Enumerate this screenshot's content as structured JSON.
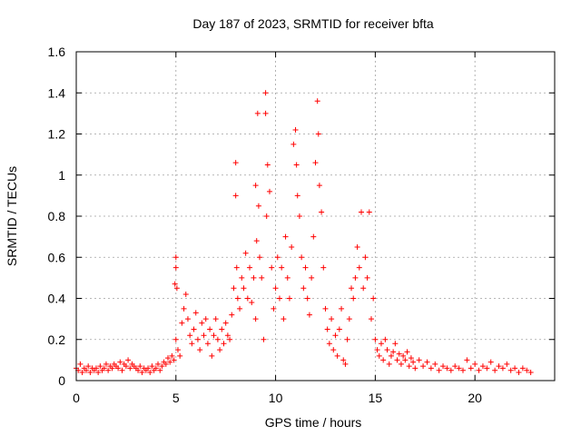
{
  "chart_data": {
    "type": "scatter",
    "title": "Day 187 of 2023, SRMTID for receiver bfta",
    "xlabel": "GPS time / hours",
    "ylabel": "SRMTID / TECUs",
    "xlim": [
      0,
      24
    ],
    "ylim": [
      0,
      1.6
    ],
    "xticks": [
      0,
      5,
      10,
      15,
      20
    ],
    "xtick_labels": [
      "0",
      "5",
      "10",
      "15",
      "20"
    ],
    "yticks": [
      0,
      0.2,
      0.4,
      0.6,
      0.8,
      1.0,
      1.2,
      1.4,
      1.6
    ],
    "ytick_labels": [
      "0",
      "0.2",
      "0.4",
      "0.6",
      "0.8",
      "1",
      "1.2",
      "1.4",
      "1.6"
    ],
    "grid": true,
    "marker": "plus",
    "marker_color": "#ff0000",
    "series": [
      {
        "name": "SRMTID",
        "points": [
          [
            0.0,
            0.06
          ],
          [
            0.1,
            0.05
          ],
          [
            0.2,
            0.08
          ],
          [
            0.3,
            0.04
          ],
          [
            0.4,
            0.06
          ],
          [
            0.5,
            0.05
          ],
          [
            0.6,
            0.07
          ],
          [
            0.7,
            0.04
          ],
          [
            0.8,
            0.06
          ],
          [
            0.9,
            0.05
          ],
          [
            1.0,
            0.06
          ],
          [
            1.1,
            0.04
          ],
          [
            1.2,
            0.07
          ],
          [
            1.3,
            0.05
          ],
          [
            1.4,
            0.06
          ],
          [
            1.5,
            0.08
          ],
          [
            1.6,
            0.05
          ],
          [
            1.7,
            0.07
          ],
          [
            1.8,
            0.06
          ],
          [
            1.9,
            0.08
          ],
          [
            2.0,
            0.07
          ],
          [
            2.1,
            0.06
          ],
          [
            2.2,
            0.09
          ],
          [
            2.3,
            0.05
          ],
          [
            2.4,
            0.08
          ],
          [
            2.5,
            0.07
          ],
          [
            2.6,
            0.1
          ],
          [
            2.7,
            0.06
          ],
          [
            2.8,
            0.08
          ],
          [
            2.9,
            0.07
          ],
          [
            3.0,
            0.06
          ],
          [
            3.1,
            0.05
          ],
          [
            3.2,
            0.07
          ],
          [
            3.3,
            0.04
          ],
          [
            3.4,
            0.06
          ],
          [
            3.5,
            0.05
          ],
          [
            3.6,
            0.06
          ],
          [
            3.7,
            0.04
          ],
          [
            3.8,
            0.07
          ],
          [
            3.9,
            0.05
          ],
          [
            4.0,
            0.06
          ],
          [
            4.1,
            0.08
          ],
          [
            4.2,
            0.05
          ],
          [
            4.3,
            0.07
          ],
          [
            4.4,
            0.09
          ],
          [
            4.5,
            0.08
          ],
          [
            4.6,
            0.11
          ],
          [
            4.7,
            0.09
          ],
          [
            4.8,
            0.12
          ],
          [
            4.9,
            0.1
          ],
          [
            5.0,
            0.6
          ],
          [
            5.0,
            0.55
          ],
          [
            4.95,
            0.47
          ],
          [
            5.05,
            0.45
          ],
          [
            5.0,
            0.2
          ],
          [
            5.1,
            0.15
          ],
          [
            5.2,
            0.12
          ],
          [
            5.3,
            0.28
          ],
          [
            5.4,
            0.35
          ],
          [
            5.5,
            0.42
          ],
          [
            5.6,
            0.3
          ],
          [
            5.7,
            0.22
          ],
          [
            5.8,
            0.18
          ],
          [
            5.9,
            0.25
          ],
          [
            6.0,
            0.33
          ],
          [
            6.1,
            0.2
          ],
          [
            6.2,
            0.15
          ],
          [
            6.3,
            0.28
          ],
          [
            6.4,
            0.22
          ],
          [
            6.5,
            0.3
          ],
          [
            6.6,
            0.18
          ],
          [
            6.7,
            0.25
          ],
          [
            6.8,
            0.12
          ],
          [
            6.9,
            0.22
          ],
          [
            7.0,
            0.3
          ],
          [
            7.1,
            0.2
          ],
          [
            7.2,
            0.15
          ],
          [
            7.3,
            0.25
          ],
          [
            7.4,
            0.18
          ],
          [
            7.5,
            0.28
          ],
          [
            7.6,
            0.22
          ],
          [
            7.7,
            0.2
          ],
          [
            7.8,
            0.32
          ],
          [
            7.9,
            0.45
          ],
          [
            8.0,
            1.06
          ],
          [
            8.0,
            0.9
          ],
          [
            8.05,
            0.55
          ],
          [
            8.1,
            0.4
          ],
          [
            8.2,
            0.35
          ],
          [
            8.3,
            0.5
          ],
          [
            8.4,
            0.45
          ],
          [
            8.5,
            0.62
          ],
          [
            8.6,
            0.4
          ],
          [
            8.7,
            0.55
          ],
          [
            8.8,
            0.38
          ],
          [
            8.9,
            0.5
          ],
          [
            9.0,
            0.3
          ],
          [
            9.0,
            0.95
          ],
          [
            9.05,
            0.68
          ],
          [
            9.1,
            1.3
          ],
          [
            9.15,
            0.85
          ],
          [
            9.2,
            0.6
          ],
          [
            9.3,
            0.5
          ],
          [
            9.4,
            0.2
          ],
          [
            9.5,
            1.4
          ],
          [
            9.5,
            1.3
          ],
          [
            9.55,
            0.8
          ],
          [
            9.6,
            1.05
          ],
          [
            9.7,
            0.92
          ],
          [
            9.8,
            0.55
          ],
          [
            9.9,
            0.35
          ],
          [
            10.0,
            0.45
          ],
          [
            10.1,
            0.6
          ],
          [
            10.2,
            0.4
          ],
          [
            10.3,
            0.55
          ],
          [
            10.4,
            0.3
          ],
          [
            10.5,
            0.7
          ],
          [
            10.6,
            0.5
          ],
          [
            10.7,
            0.4
          ],
          [
            10.8,
            0.65
          ],
          [
            10.9,
            1.15
          ],
          [
            11.0,
            1.22
          ],
          [
            11.05,
            1.05
          ],
          [
            11.1,
            0.9
          ],
          [
            11.2,
            0.8
          ],
          [
            11.3,
            0.6
          ],
          [
            11.4,
            0.45
          ],
          [
            11.5,
            0.55
          ],
          [
            11.6,
            0.4
          ],
          [
            11.7,
            0.32
          ],
          [
            11.8,
            0.5
          ],
          [
            11.9,
            0.7
          ],
          [
            12.0,
            1.06
          ],
          [
            12.1,
            1.36
          ],
          [
            12.15,
            1.2
          ],
          [
            12.2,
            0.95
          ],
          [
            12.3,
            0.82
          ],
          [
            12.4,
            0.55
          ],
          [
            12.5,
            0.35
          ],
          [
            12.6,
            0.25
          ],
          [
            12.7,
            0.18
          ],
          [
            12.8,
            0.3
          ],
          [
            12.9,
            0.15
          ],
          [
            13.0,
            0.22
          ],
          [
            13.1,
            0.12
          ],
          [
            13.2,
            0.25
          ],
          [
            13.3,
            0.35
          ],
          [
            13.4,
            0.1
          ],
          [
            13.5,
            0.08
          ],
          [
            13.6,
            0.2
          ],
          [
            13.7,
            0.3
          ],
          [
            13.8,
            0.45
          ],
          [
            13.9,
            0.4
          ],
          [
            14.0,
            0.5
          ],
          [
            14.1,
            0.65
          ],
          [
            14.2,
            0.55
          ],
          [
            14.3,
            0.82
          ],
          [
            14.4,
            0.45
          ],
          [
            14.5,
            0.6
          ],
          [
            14.6,
            0.5
          ],
          [
            14.7,
            0.82
          ],
          [
            14.8,
            0.3
          ],
          [
            14.9,
            0.4
          ],
          [
            15.0,
            0.2
          ],
          [
            15.1,
            0.15
          ],
          [
            15.2,
            0.12
          ],
          [
            15.3,
            0.18
          ],
          [
            15.4,
            0.1
          ],
          [
            15.5,
            0.2
          ],
          [
            15.6,
            0.15
          ],
          [
            15.7,
            0.08
          ],
          [
            15.8,
            0.12
          ],
          [
            15.9,
            0.14
          ],
          [
            16.0,
            0.18
          ],
          [
            16.1,
            0.1
          ],
          [
            16.2,
            0.13
          ],
          [
            16.3,
            0.08
          ],
          [
            16.4,
            0.12
          ],
          [
            16.5,
            0.1
          ],
          [
            16.6,
            0.14
          ],
          [
            16.7,
            0.07
          ],
          [
            16.8,
            0.11
          ],
          [
            16.9,
            0.09
          ],
          [
            17.0,
            0.06
          ],
          [
            17.2,
            0.1
          ],
          [
            17.4,
            0.07
          ],
          [
            17.6,
            0.09
          ],
          [
            17.8,
            0.06
          ],
          [
            18.0,
            0.08
          ],
          [
            18.2,
            0.05
          ],
          [
            18.4,
            0.07
          ],
          [
            18.6,
            0.06
          ],
          [
            18.8,
            0.05
          ],
          [
            19.0,
            0.07
          ],
          [
            19.2,
            0.06
          ],
          [
            19.4,
            0.05
          ],
          [
            19.6,
            0.1
          ],
          [
            19.8,
            0.06
          ],
          [
            20.0,
            0.08
          ],
          [
            20.2,
            0.05
          ],
          [
            20.4,
            0.07
          ],
          [
            20.6,
            0.06
          ],
          [
            20.8,
            0.09
          ],
          [
            21.0,
            0.05
          ],
          [
            21.2,
            0.07
          ],
          [
            21.4,
            0.06
          ],
          [
            21.6,
            0.08
          ],
          [
            21.8,
            0.05
          ],
          [
            22.0,
            0.06
          ],
          [
            22.2,
            0.04
          ],
          [
            22.4,
            0.06
          ],
          [
            22.6,
            0.05
          ],
          [
            22.8,
            0.04
          ]
        ]
      }
    ]
  }
}
